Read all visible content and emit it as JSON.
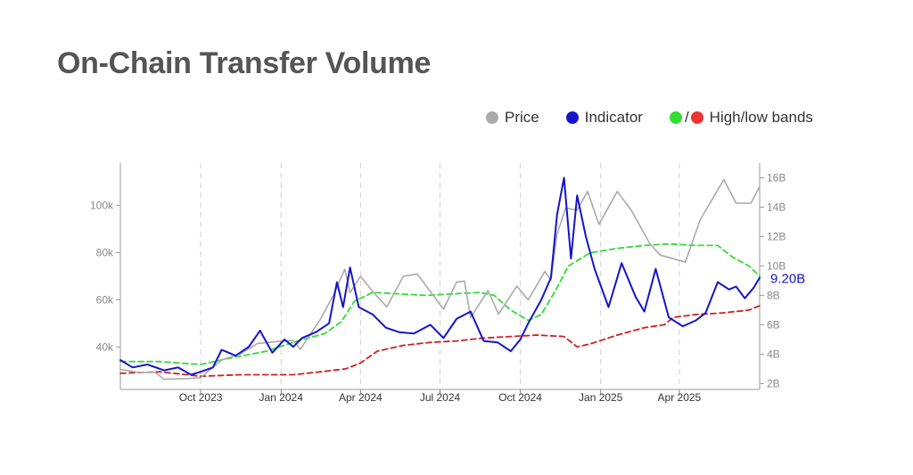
{
  "title": "On-Chain Transfer Volume",
  "legend": {
    "price_label": "Price",
    "indicator_label": "Indicator",
    "bands_slash": "/",
    "bands_label": "High/low bands"
  },
  "colors": {
    "price": "#aaaaaa",
    "indicator": "#1414cc",
    "high_band": "#33dd33",
    "low_band": "#cc2222",
    "title": "#555555"
  },
  "chart_data": {
    "type": "line",
    "x_type": "date",
    "x_range": [
      "2023-07-01",
      "2025-07-02"
    ],
    "x_ticks": [
      {
        "date": "2023-10-01",
        "label": "Oct 2023"
      },
      {
        "date": "2024-01-01",
        "label": "Jan 2024"
      },
      {
        "date": "2024-04-01",
        "label": "Apr 2024"
      },
      {
        "date": "2024-07-01",
        "label": "Jul 2024"
      },
      {
        "date": "2024-10-01",
        "label": "Oct 2024"
      },
      {
        "date": "2025-01-01",
        "label": "Jan 2025"
      },
      {
        "date": "2025-04-01",
        "label": "Apr 2025"
      }
    ],
    "x_gridlines": "dashed, vertical",
    "y_left": {
      "range": [
        22000,
        118000
      ],
      "ticks": [
        40000,
        60000,
        80000,
        100000
      ],
      "tick_labels": [
        "40k",
        "60k",
        "80k",
        "100k"
      ]
    },
    "y_right": {
      "range": [
        1.6,
        17
      ],
      "ticks": [
        2,
        4,
        6,
        8,
        10,
        12,
        14,
        16
      ],
      "tick_labels": [
        "2B",
        "4B",
        "6B",
        "8B",
        "10B",
        "12B",
        "14B",
        "16B"
      ]
    },
    "last_value_label": "9.20B",
    "series": [
      {
        "name": "Price",
        "axis": "left",
        "style": "solid",
        "points": [
          [
            "2023-07-01",
            30500
          ],
          [
            "2023-07-20",
            29300
          ],
          [
            "2023-08-10",
            29200
          ],
          [
            "2023-08-20",
            26300
          ],
          [
            "2023-09-15",
            26600
          ],
          [
            "2023-10-01",
            27000
          ],
          [
            "2023-10-25",
            34500
          ],
          [
            "2023-11-15",
            37000
          ],
          [
            "2023-12-05",
            41500
          ],
          [
            "2024-01-01",
            42500
          ],
          [
            "2024-01-15",
            42800
          ],
          [
            "2024-01-23",
            39000
          ],
          [
            "2024-02-15",
            51700
          ],
          [
            "2024-03-01",
            62000
          ],
          [
            "2024-03-14",
            73000
          ],
          [
            "2024-03-20",
            63000
          ],
          [
            "2024-04-01",
            70000
          ],
          [
            "2024-04-15",
            63500
          ],
          [
            "2024-05-01",
            57000
          ],
          [
            "2024-05-20",
            70000
          ],
          [
            "2024-06-05",
            71000
          ],
          [
            "2024-06-25",
            61000
          ],
          [
            "2024-07-05",
            56000
          ],
          [
            "2024-07-20",
            67500
          ],
          [
            "2024-07-29",
            68000
          ],
          [
            "2024-08-05",
            52500
          ],
          [
            "2024-08-25",
            64000
          ],
          [
            "2024-09-06",
            53900
          ],
          [
            "2024-09-27",
            65800
          ],
          [
            "2024-10-10",
            60000
          ],
          [
            "2024-10-29",
            72000
          ],
          [
            "2024-11-05",
            68500
          ],
          [
            "2024-11-12",
            88000
          ],
          [
            "2024-11-22",
            99000
          ],
          [
            "2024-12-05",
            98000
          ],
          [
            "2024-12-17",
            106000
          ],
          [
            "2024-12-30",
            92000
          ],
          [
            "2025-01-20",
            106000
          ],
          [
            "2025-02-05",
            98000
          ],
          [
            "2025-02-26",
            84000
          ],
          [
            "2025-03-10",
            79000
          ],
          [
            "2025-04-08",
            76000
          ],
          [
            "2025-04-25",
            94000
          ],
          [
            "2025-05-22",
            111000
          ],
          [
            "2025-06-05",
            101000
          ],
          [
            "2025-06-22",
            101000
          ],
          [
            "2025-07-02",
            108000
          ]
        ]
      },
      {
        "name": "Indicator",
        "axis": "right",
        "style": "solid",
        "points": [
          [
            "2023-07-01",
            3.6
          ],
          [
            "2023-07-15",
            3.1
          ],
          [
            "2023-08-01",
            3.3
          ],
          [
            "2023-08-20",
            2.9
          ],
          [
            "2023-09-05",
            3.1
          ],
          [
            "2023-09-20",
            2.6
          ],
          [
            "2023-10-01",
            2.8
          ],
          [
            "2023-10-15",
            3.1
          ],
          [
            "2023-10-25",
            4.3
          ],
          [
            "2023-11-10",
            3.9
          ],
          [
            "2023-11-25",
            4.5
          ],
          [
            "2023-12-08",
            5.6
          ],
          [
            "2023-12-22",
            4.1
          ],
          [
            "2024-01-05",
            5.0
          ],
          [
            "2024-01-15",
            4.5
          ],
          [
            "2024-01-25",
            5.1
          ],
          [
            "2024-02-10",
            5.5
          ],
          [
            "2024-02-25",
            6.1
          ],
          [
            "2024-03-05",
            8.9
          ],
          [
            "2024-03-12",
            7.2
          ],
          [
            "2024-03-20",
            9.9
          ],
          [
            "2024-03-30",
            7.2
          ],
          [
            "2024-04-15",
            6.7
          ],
          [
            "2024-04-30",
            5.8
          ],
          [
            "2024-05-15",
            5.5
          ],
          [
            "2024-06-01",
            5.4
          ],
          [
            "2024-06-20",
            6.0
          ],
          [
            "2024-07-05",
            5.1
          ],
          [
            "2024-07-20",
            6.4
          ],
          [
            "2024-08-05",
            6.9
          ],
          [
            "2024-08-20",
            4.9
          ],
          [
            "2024-09-05",
            4.8
          ],
          [
            "2024-09-20",
            4.2
          ],
          [
            "2024-10-01",
            5.0
          ],
          [
            "2024-10-10",
            6.1
          ],
          [
            "2024-10-25",
            7.7
          ],
          [
            "2024-11-05",
            9.2
          ],
          [
            "2024-11-12",
            13.5
          ],
          [
            "2024-11-20",
            16.0
          ],
          [
            "2024-11-28",
            10.5
          ],
          [
            "2024-12-05",
            14.8
          ],
          [
            "2024-12-15",
            12.0
          ],
          [
            "2024-12-25",
            9.8
          ],
          [
            "2025-01-10",
            7.2
          ],
          [
            "2025-01-25",
            10.2
          ],
          [
            "2025-02-10",
            7.9
          ],
          [
            "2025-02-20",
            6.9
          ],
          [
            "2025-03-05",
            9.8
          ],
          [
            "2025-03-20",
            6.5
          ],
          [
            "2025-04-05",
            5.9
          ],
          [
            "2025-04-20",
            6.3
          ],
          [
            "2025-05-01",
            6.8
          ],
          [
            "2025-05-15",
            8.9
          ],
          [
            "2025-05-28",
            8.4
          ],
          [
            "2025-06-05",
            8.6
          ],
          [
            "2025-06-15",
            7.8
          ],
          [
            "2025-06-25",
            8.5
          ],
          [
            "2025-07-02",
            9.2
          ]
        ]
      },
      {
        "name": "High band",
        "axis": "right",
        "style": "dashed",
        "points": [
          [
            "2023-07-01",
            3.5
          ],
          [
            "2023-08-15",
            3.5
          ],
          [
            "2023-10-01",
            3.3
          ],
          [
            "2023-11-01",
            3.7
          ],
          [
            "2023-12-15",
            4.2
          ],
          [
            "2024-01-20",
            4.9
          ],
          [
            "2024-02-20",
            5.4
          ],
          [
            "2024-03-10",
            6.2
          ],
          [
            "2024-03-25",
            7.6
          ],
          [
            "2024-04-15",
            8.2
          ],
          [
            "2024-05-15",
            8.1
          ],
          [
            "2024-06-15",
            8.0
          ],
          [
            "2024-07-15",
            8.1
          ],
          [
            "2024-08-15",
            8.2
          ],
          [
            "2024-09-01",
            8.0
          ],
          [
            "2024-09-20",
            7.0
          ],
          [
            "2024-10-10",
            6.3
          ],
          [
            "2024-10-25",
            6.7
          ],
          [
            "2024-11-10",
            8.3
          ],
          [
            "2024-11-25",
            10.0
          ],
          [
            "2024-12-20",
            10.9
          ],
          [
            "2025-01-20",
            11.2
          ],
          [
            "2025-02-20",
            11.4
          ],
          [
            "2025-03-20",
            11.5
          ],
          [
            "2025-04-20",
            11.4
          ],
          [
            "2025-05-15",
            11.4
          ],
          [
            "2025-06-01",
            10.6
          ],
          [
            "2025-06-20",
            10.0
          ],
          [
            "2025-07-02",
            9.3
          ]
        ]
      },
      {
        "name": "Low band",
        "axis": "right",
        "style": "dashed",
        "points": [
          [
            "2023-07-01",
            2.7
          ],
          [
            "2023-08-15",
            2.8
          ],
          [
            "2023-10-01",
            2.5
          ],
          [
            "2023-11-15",
            2.6
          ],
          [
            "2024-01-15",
            2.6
          ],
          [
            "2024-02-15",
            2.8
          ],
          [
            "2024-03-15",
            3.0
          ],
          [
            "2024-04-01",
            3.4
          ],
          [
            "2024-04-20",
            4.2
          ],
          [
            "2024-05-20",
            4.6
          ],
          [
            "2024-06-20",
            4.8
          ],
          [
            "2024-07-20",
            4.9
          ],
          [
            "2024-08-20",
            5.1
          ],
          [
            "2024-09-20",
            5.2
          ],
          [
            "2024-10-20",
            5.3
          ],
          [
            "2024-11-20",
            5.2
          ],
          [
            "2024-12-05",
            4.5
          ],
          [
            "2024-12-20",
            4.7
          ],
          [
            "2025-01-20",
            5.3
          ],
          [
            "2025-02-20",
            5.8
          ],
          [
            "2025-03-15",
            6.0
          ],
          [
            "2025-03-25",
            6.5
          ],
          [
            "2025-04-20",
            6.7
          ],
          [
            "2025-05-20",
            6.8
          ],
          [
            "2025-06-20",
            7.0
          ],
          [
            "2025-07-02",
            7.3
          ]
        ]
      }
    ]
  }
}
